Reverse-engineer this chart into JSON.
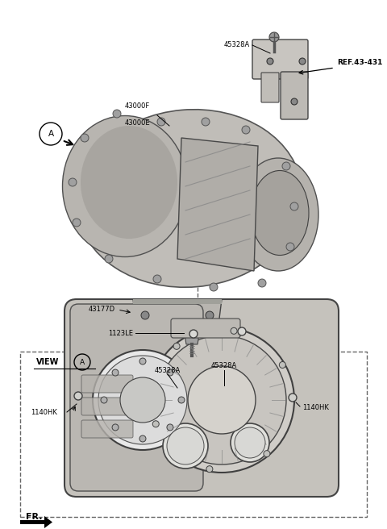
{
  "bg_color": "#ffffff",
  "line_color": "#000000",
  "label_color": "#000000",
  "top": {
    "ref_label": "REF.43-431",
    "label_45328A": "45328A",
    "label_43000F": "43000F",
    "label_43000E": "43000E",
    "label_43177D": "43177D",
    "label_1123LE": "1123LE"
  },
  "bottom": {
    "view_label": "VIEW",
    "label_45328A_L": "45328A",
    "label_45328A_R": "45328A",
    "label_1140HK_L": "1140HK",
    "label_1140HK_R": "1140HK"
  },
  "fr_label": "FR."
}
